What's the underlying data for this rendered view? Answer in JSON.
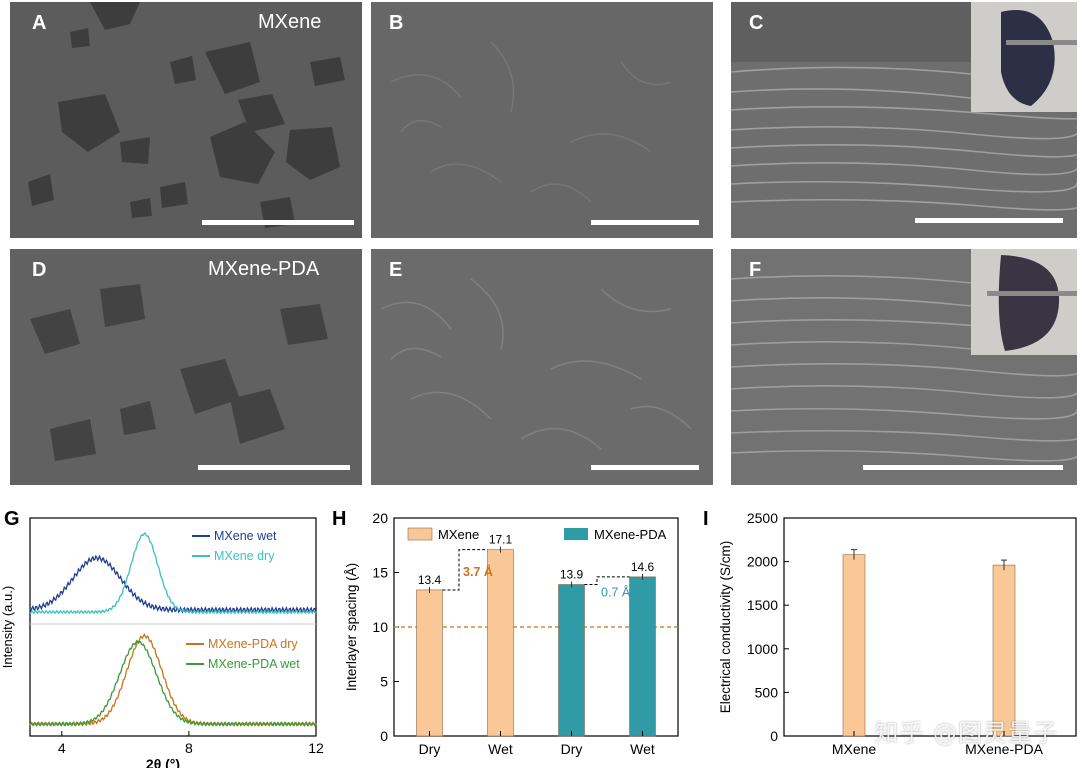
{
  "panels": {
    "A": {
      "letter": "A",
      "label": "MXene"
    },
    "B": {
      "letter": "B"
    },
    "C": {
      "letter": "C"
    },
    "D": {
      "letter": "D",
      "label": "MXene-PDA"
    },
    "E": {
      "letter": "E"
    },
    "F": {
      "letter": "F"
    },
    "G": {
      "letter": "G"
    },
    "H": {
      "letter": "H"
    },
    "I": {
      "letter": "I"
    }
  },
  "chart_data": [
    {
      "type": "line",
      "panel": "G",
      "xlabel": "2θ (°)",
      "ylabel": "Intensity (a.u.)",
      "xlim": [
        3,
        12
      ],
      "xticks": [
        "4",
        "8",
        "12"
      ],
      "series": [
        {
          "name": "MXene wet",
          "color": "#1f3f8f",
          "peak_x": 5.1
        },
        {
          "name": "MXene dry",
          "color": "#3cc0c0",
          "peak_x": 6.6
        },
        {
          "name": "MXene-PDA dry",
          "color": "#c8741c",
          "peak_x": 6.6
        },
        {
          "name": "MXene-PDA wet",
          "color": "#3a9b3a",
          "peak_x": 6.4
        }
      ]
    },
    {
      "type": "bar",
      "panel": "H",
      "ylabel": "Interlayer spacing (Å)",
      "ylim": [
        0,
        20
      ],
      "yticks": [
        "0",
        "5",
        "10",
        "15",
        "20"
      ],
      "categories": [
        "Dry",
        "Wet",
        "Dry",
        "Wet"
      ],
      "values": [
        13.4,
        17.1,
        13.9,
        14.6
      ],
      "value_labels": [
        "13.4",
        "17.1",
        "13.9",
        "14.6"
      ],
      "bar_colors": [
        "#f9c896",
        "#f9c896",
        "#2f9ba6",
        "#2f9ba6"
      ],
      "legend": [
        "MXene",
        "MXene-PDA"
      ],
      "reference_line": 10,
      "annotations": [
        {
          "text": "3.7 Å",
          "color": "#c8741c"
        },
        {
          "text": "0.7 Å",
          "color": "#2f9ba6"
        }
      ]
    },
    {
      "type": "bar",
      "panel": "I",
      "ylabel": "Electrical conductivity (S/cm)",
      "ylim": [
        0,
        2500
      ],
      "yticks": [
        "0",
        "500",
        "1000",
        "1500",
        "2000",
        "2500"
      ],
      "categories": [
        "MXene",
        "MXene-PDA"
      ],
      "values": [
        2080,
        1960
      ],
      "bar_color": "#f9c896"
    }
  ],
  "watermark": "知乎 @图灵量子"
}
